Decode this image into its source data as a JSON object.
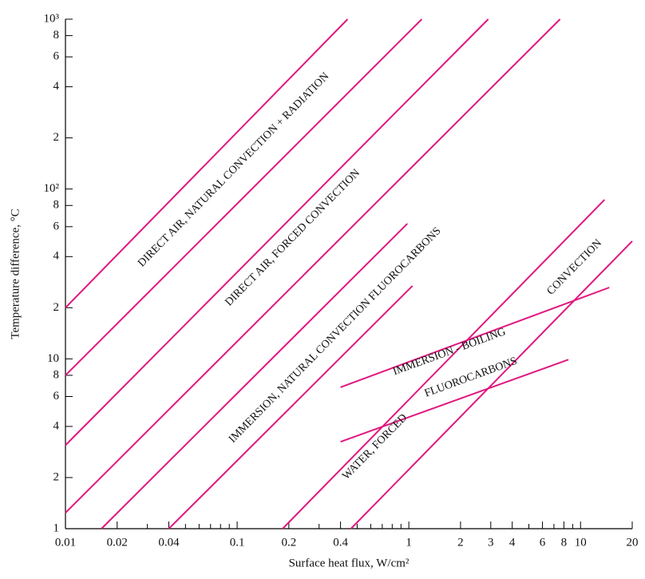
{
  "chart_data": {
    "type": "line",
    "xlabel": "Surface heat flux, W/cm²",
    "ylabel": "Temperature difference, °C",
    "xscale": "log",
    "yscale": "log",
    "xlim": [
      0.01,
      20
    ],
    "ylim": [
      1,
      1000
    ],
    "xticks": [
      0.01,
      0.02,
      0.04,
      0.1,
      0.2,
      0.4,
      1,
      2,
      3,
      4,
      6,
      8,
      10,
      20
    ],
    "xminor_ticks": [
      0.03,
      0.05,
      0.06,
      0.07,
      0.08,
      0.09,
      0.3,
      0.5,
      0.6,
      0.7,
      0.8,
      0.9,
      5,
      7,
      9
    ],
    "yticks": [
      1,
      2,
      4,
      6,
      8,
      10,
      {
        "value": 20,
        "label": "2"
      },
      {
        "value": 40,
        "label": "4"
      },
      {
        "value": 60,
        "label": "6"
      },
      {
        "value": 80,
        "label": "8"
      },
      {
        "value": 100,
        "label": "10²"
      },
      {
        "value": 200,
        "label": "2"
      },
      {
        "value": 400,
        "label": "4"
      },
      {
        "value": 600,
        "label": "6"
      },
      {
        "value": 800,
        "label": "8"
      },
      {
        "value": 1000,
        "label": "10³"
      }
    ],
    "color": "#e0177f",
    "series": [
      {
        "x": [
          0.01,
          0.44
        ],
        "values": [
          20,
          1000
        ]
      },
      {
        "x": [
          0.01,
          1.19
        ],
        "values": [
          8,
          1000
        ]
      },
      {
        "x": [
          0.01,
          2.9
        ],
        "values": [
          3.1,
          1000
        ]
      },
      {
        "x": [
          0.01,
          7.6
        ],
        "values": [
          1.24,
          1000
        ]
      },
      {
        "x": [
          0.0162,
          0.98
        ],
        "values": [
          1,
          62.5
        ]
      },
      {
        "x": [
          0.04,
          1.05
        ],
        "values": [
          1,
          26.9
        ]
      },
      {
        "x": [
          0.184,
          13.8
        ],
        "values": [
          1,
          86.5
        ]
      },
      {
        "x": [
          0.46,
          20
        ],
        "values": [
          1,
          49.3
        ]
      },
      {
        "x": [
          0.4,
          14.7
        ],
        "values": [
          6.8,
          26.3
        ]
      },
      {
        "x": [
          0.4,
          8.5
        ],
        "values": [
          3.25,
          9.9
        ]
      }
    ],
    "annotations": [
      "DIRECT AIR, NATURAL CONVECTION + RADIATION",
      "DIRECT AIR, FORCED CONVECTION",
      "IMMERSION, NATURAL CONVECTION FLUOROCARBONS",
      "CONVECTION",
      "IMMERSION - BOILING",
      "FLUOROCARBONS",
      "WATER, FORCED"
    ]
  }
}
